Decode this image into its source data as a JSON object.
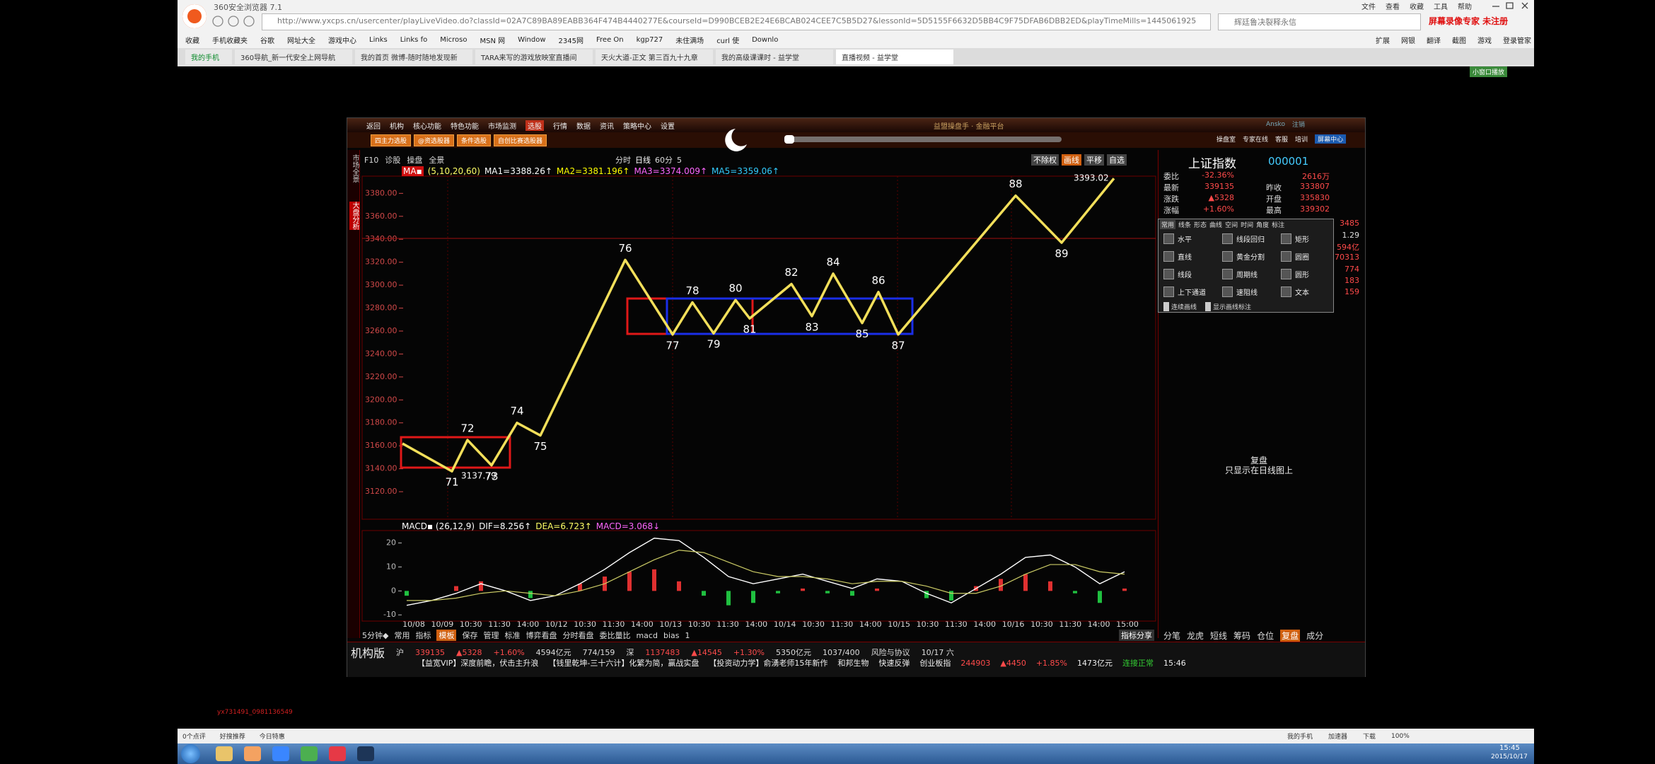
{
  "browser": {
    "title": "360安全浏览器 7.1",
    "menu": [
      "文件",
      "查看",
      "收藏",
      "工具",
      "帮助"
    ],
    "url": "http://www.yxcps.cn/usercenter/playLiveVideo.do?classId=02A7C89BA89EABB364F474B4440277E&courseId=D990BCEB2E24E6BCAB024CEE7C5B5D27&lessonId=5D5155F6632D5BB4C9F75DFAB6DBB2ED&playTimeMills=1445061925",
    "search": "辉廷鲁决裂释永信",
    "recorder": "屏幕录像专家 未注册",
    "bookmarks": [
      "收藏",
      "手机收藏夹",
      "谷歌",
      "网址大全",
      "游戏中心",
      "Links",
      "Links fo",
      "Microso",
      "MSN 网",
      "Window",
      "2345网",
      "Free On",
      "kgp727",
      "未住满场",
      "curl 使",
      "Downlo"
    ],
    "tools": [
      "扩展",
      "网银",
      "翻译",
      "截图",
      "游戏",
      "登录管家"
    ],
    "tabs": [
      "我的手机",
      "360导航_新一代安全上网导航",
      "我的首页 微博-随时随地发现新",
      "TARA来写的游戏放映室直播间",
      "天火大道-正文 第三百九十九章",
      "我的高级课课时 - 益学堂",
      "直播视频 - 益学堂"
    ],
    "mini_window": "小窗口播放"
  },
  "app": {
    "menu": [
      "返回",
      "机构",
      "核心功能",
      "特色功能",
      "市场监测",
      "选股",
      "行情",
      "数据",
      "资讯",
      "策略中心",
      "设置"
    ],
    "platform": "益盟操盘手 · 金融平台",
    "user": [
      "Ansko",
      "注销"
    ],
    "right_menu": [
      "操盘室",
      "专家在线",
      "客服",
      "培训",
      "屏幕中心"
    ],
    "buttons": [
      "四主力选股",
      "@资选股器",
      "条件选股",
      "自创比赛选股器"
    ],
    "side_tabs": [
      "市场全景",
      "大盘分析"
    ],
    "chart_tools": [
      "F10",
      "诊股",
      "操盘",
      "全景"
    ],
    "periods": [
      "分时",
      "日线",
      "60分",
      "5"
    ],
    "chart_options": [
      "不除权",
      "画线",
      "平移",
      "自选"
    ],
    "ma_legend": [
      "MA▪",
      "(5,10,20,60)",
      "MA1=3388.26↑",
      "MA2=3381.196↑",
      "MA3=3374.009↑",
      "MA5=3359.06↑"
    ],
    "price_ylim": [
      3096,
      3395
    ],
    "price_ticks": [
      {
        "value": 3380,
        "label": "3380.00"
      },
      {
        "value": 3360,
        "label": "3360.00"
      },
      {
        "value": 3340,
        "label": "3340.00"
      },
      {
        "value": 3320,
        "label": "3320.00"
      },
      {
        "value": 3300,
        "label": "3300.00"
      },
      {
        "value": 3280,
        "label": "3280.00"
      },
      {
        "value": 3260,
        "label": "3260.00"
      },
      {
        "value": 3240,
        "label": "3240.00"
      },
      {
        "value": 3220,
        "label": "3220.00"
      },
      {
        "value": 3200,
        "label": "3200.00"
      },
      {
        "value": 3180,
        "label": "3180.00"
      },
      {
        "value": 3160,
        "label": "3160.00"
      },
      {
        "value": 3140,
        "label": "3140.00"
      },
      {
        "value": 3120,
        "label": "3120.00"
      }
    ],
    "pivots": {
      "labels": [
        null,
        "71",
        "72",
        "73",
        "74",
        "75",
        "76",
        "77",
        "78",
        "79",
        "80",
        "81",
        "82",
        "83",
        "84",
        "85",
        "86",
        "87",
        "88",
        "89",
        null
      ],
      "values": [
        3162,
        3137.79,
        3165,
        3143,
        3180,
        3169,
        3322,
        3257,
        3285,
        3258,
        3287,
        3271,
        3301,
        3273,
        3310,
        3267,
        3294,
        3257,
        3378,
        3337,
        3393.02
      ]
    },
    "low_price": "3137.79",
    "high_price": "3393.02",
    "x_labels": [
      "10/08",
      "10/09",
      "10:30",
      "11:30",
      "14:00",
      "10/12",
      "10:30",
      "11:30",
      "14:00",
      "10/13",
      "10:30",
      "11:30",
      "14:00",
      "10/14",
      "10:30",
      "11:30",
      "14:00",
      "10/15",
      "10:30",
      "11:30",
      "14:00",
      "10/16",
      "10:30",
      "11:30",
      "14:00",
      "15:00"
    ],
    "macd": {
      "legend": [
        "MACD▪ (26,12,9)",
        "DIF=8.256↑",
        "DEA=6.723↑",
        "MACD=3.068↓"
      ],
      "yticks": [
        20,
        10,
        0,
        -10
      ],
      "ylim": [
        -12,
        24
      ],
      "dif": [
        -6,
        -4,
        -1,
        3,
        0,
        -4,
        -2,
        3,
        9,
        16,
        22,
        21,
        14,
        6,
        3,
        5,
        7,
        4,
        1,
        5,
        4,
        -1,
        -5,
        1,
        7,
        14,
        15,
        10,
        3,
        8
      ],
      "dea": [
        -4,
        -4,
        -3,
        -1,
        0,
        -1,
        -2,
        0,
        3,
        8,
        13,
        17,
        16,
        12,
        8,
        6,
        6,
        5,
        3,
        4,
        4,
        2,
        -1,
        -1,
        2,
        7,
        11,
        11,
        8,
        7
      ],
      "hist": [
        -2,
        0,
        2,
        4,
        0,
        -3,
        0,
        3,
        6,
        8,
        9,
        4,
        -2,
        -6,
        -5,
        -1,
        1,
        -1,
        -2,
        1,
        0,
        -3,
        -4,
        2,
        5,
        7,
        4,
        -1,
        -5,
        1
      ]
    },
    "bottom_tools": [
      "5分钟◆",
      "常用",
      "指标",
      "模板",
      "保存",
      "管理",
      "标准",
      "博弈看盘",
      "分时看盘",
      "委比量比",
      "macd",
      "bias",
      "1"
    ],
    "share": "指标分享",
    "quote": {
      "title": "上证指数",
      "code": "000001",
      "rows": [
        [
          "委比",
          "-32.36%",
          "2616万"
        ],
        [
          "最新",
          "339135",
          "昨收",
          "333807"
        ],
        [
          "涨跌",
          "▲5328",
          "开盘",
          "335830"
        ],
        [
          "涨幅",
          "+1.60%",
          "最高",
          "339302"
        ]
      ],
      "extra": [
        "3485",
        "1.29",
        "594亿",
        "70313",
        "774",
        "183",
        "159"
      ]
    },
    "draw_tools": {
      "tabs": [
        "常用",
        "线条",
        "形态",
        "曲线",
        "空间",
        "时间",
        "角度",
        "标注"
      ],
      "tools": [
        "水平",
        "线段回归",
        "矩形",
        "直线",
        "黄金分割",
        "圆圈",
        "线段",
        "周期线",
        "圆形",
        "上下通道",
        "速阻线",
        "文本"
      ],
      "options": [
        "连续画线",
        "显示画线标注"
      ]
    },
    "replay": [
      "复盘",
      "只显示在日线图上"
    ],
    "panel_tabs": [
      "分笔",
      "龙虎",
      "短线",
      "筹码",
      "仓位",
      "复盘",
      "成分"
    ],
    "ticker": [
      "机构版",
      "沪",
      "339135",
      "▲5328",
      "+1.60%",
      "4594亿元",
      "774/159",
      "深",
      "1137483",
      "▲14545",
      "+1.30%",
      "5350亿元",
      "1037/400",
      "风险与协议",
      "10/17 六"
    ],
    "news": [
      "【益宽VIP】深度前瞻，伏击主升浪",
      "【钱里乾坤-三十六计】化繁为简，赢战实盘",
      "【投资动力学】俞湧老师15年新作",
      "和邦生物",
      "快速反弹",
      "创业板指",
      "244903",
      "▲4450",
      "+1.85%",
      "1473亿元",
      "连接正常",
      "15:46"
    ]
  },
  "watermark": "yx731491_0981136549",
  "status": {
    "left": [
      "0个点评",
      "好搜推荐",
      "今日特惠"
    ],
    "right": [
      "我的手机",
      "加速器",
      "下载",
      "100%"
    ]
  },
  "taskbar": {
    "time": "15:45",
    "date": "2015/10/17"
  }
}
